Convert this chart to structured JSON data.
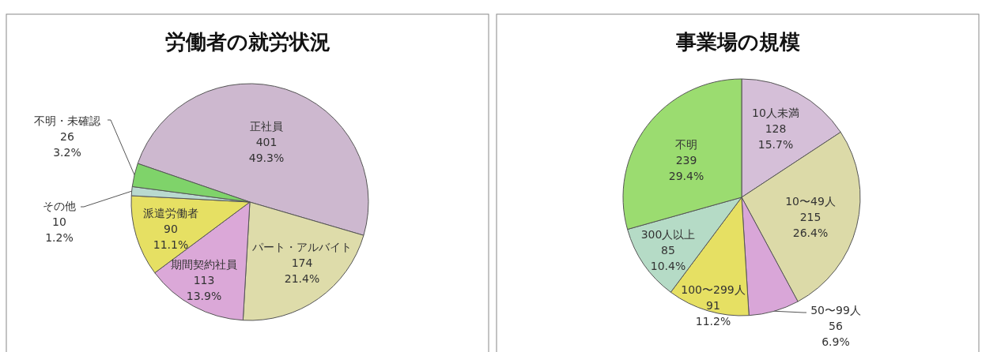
{
  "chart_data": [
    {
      "type": "pie",
      "title": "労働者の就労状況",
      "categories": [
        "正社員",
        "パート・アルバイト",
        "期間契約社員",
        "派遣労働者",
        "その他",
        "不明・未確認"
      ],
      "values": [
        401,
        174,
        113,
        90,
        10,
        26
      ],
      "value_labels": [
        "401\n49.3%",
        "174\n21.4%",
        "113\n13.9%",
        "90\n11.1%",
        "10\n1.2%",
        "26\n3.2%"
      ],
      "colors": [
        "#cdb8cf",
        "#dedcaa",
        "#dba8d8",
        "#e6e063",
        "#b9d9cf",
        "#7fd36a"
      ]
    },
    {
      "type": "pie",
      "title": "事業場の規模",
      "categories": [
        "10人未満",
        "10〜49人",
        "50〜99人",
        "100〜299人",
        "300人以上",
        "不明"
      ],
      "values": [
        128,
        215,
        56,
        91,
        85,
        239
      ],
      "value_labels": [
        "128\n15.7%",
        "215\n26.4%",
        "56\n6.9%",
        "91\n11.2%",
        "85\n10.4%",
        "239\n29.4%"
      ],
      "colors": [
        "#d5bfd8",
        "#dcdaa8",
        "#d9a6d8",
        "#e6e063",
        "#b5dbc6",
        "#9bdc70"
      ]
    }
  ]
}
